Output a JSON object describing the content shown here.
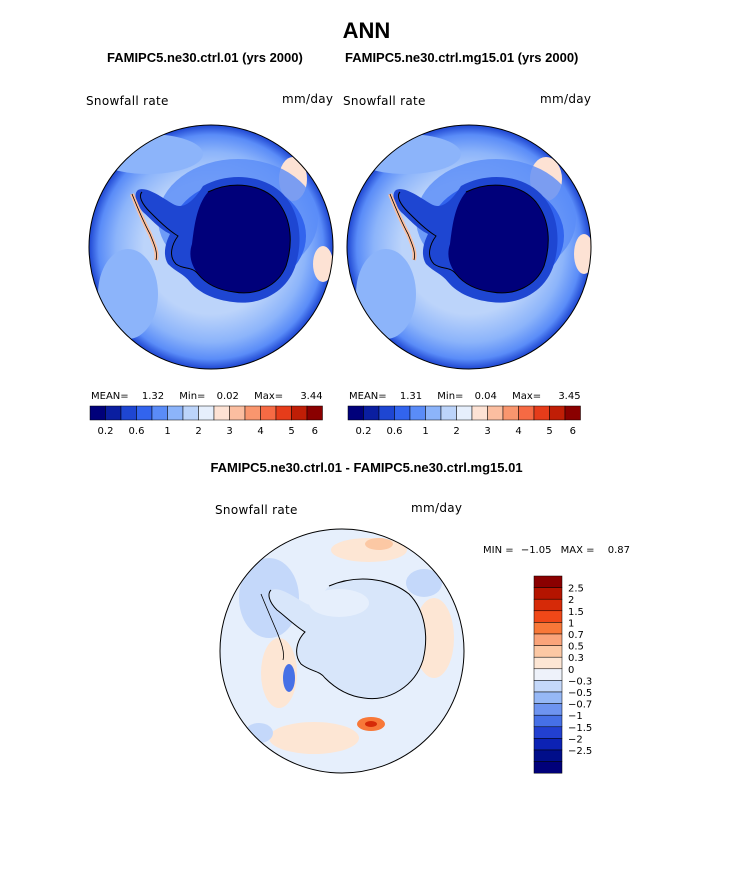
{
  "title": "ANN",
  "panels": [
    {
      "case": "FAMIPC5.ne30.ctrl.01 (yrs 2000)",
      "variable": "Snowfall rate",
      "units": "mm/day",
      "mean_label": "MEAN=",
      "mean": "1.32",
      "min_label": "Min=",
      "min": "0.02",
      "max_label": "Max=",
      "max": "3.44"
    },
    {
      "case": "FAMIPC5.ne30.ctrl.mg15.01 (yrs 2000)",
      "variable": "Snowfall rate",
      "units": "mm/day",
      "mean_label": "MEAN=",
      "mean": "1.31",
      "min_label": "Min=",
      "min": "0.04",
      "max_label": "Max=",
      "max": "3.45"
    }
  ],
  "diff": {
    "title": "FAMIPC5.ne30.ctrl.01 - FAMIPC5.ne30.ctrl.mg15.01",
    "variable": "Snowfall rate",
    "units": "mm/day",
    "min_label": "MIN =",
    "min": "−1.05",
    "max_label": "MAX =",
    "max": "0.87"
  },
  "abs_colorbar": {
    "colors": [
      "#00007a",
      "#0a1ea0",
      "#1e46d2",
      "#3264ee",
      "#5a8cf8",
      "#8cb4fa",
      "#bcd4fa",
      "#e6effc",
      "#fde2d4",
      "#fbbea0",
      "#f9966e",
      "#f66a44",
      "#e63c1a",
      "#c01e06",
      "#8a0000"
    ],
    "tick_labels": [
      "0.2",
      "0.6",
      "1",
      "2",
      "3",
      "4",
      "5",
      "6"
    ],
    "tick_after_box": [
      1,
      3,
      5,
      7,
      9,
      11,
      13,
      15
    ]
  },
  "diff_colorbar": {
    "colors_top_to_bottom": [
      "#8a0000",
      "#b41400",
      "#d62a08",
      "#f04818",
      "#f87838",
      "#faa47a",
      "#fcc8a4",
      "#fde6d4",
      "#eef2fa",
      "#c4d8fa",
      "#96b8f6",
      "#6e94f0",
      "#4670e6",
      "#2240d0",
      "#0c22b4",
      "#000e8a",
      "#00007a"
    ],
    "labels_top_to_bottom": [
      "2.5",
      "2",
      "1.5",
      "1",
      "0.7",
      "0.5",
      "0.3",
      "0",
      "−0.3",
      "−0.5",
      "−0.7",
      "−1",
      "−1.5",
      "−2",
      "−2.5"
    ]
  },
  "map_fill": {
    "ocean_abs": "#bcd4fa",
    "continent_abs": "#00007a",
    "ocean_diff": "#e6effc",
    "continent_diff": "#d8e6fa"
  }
}
